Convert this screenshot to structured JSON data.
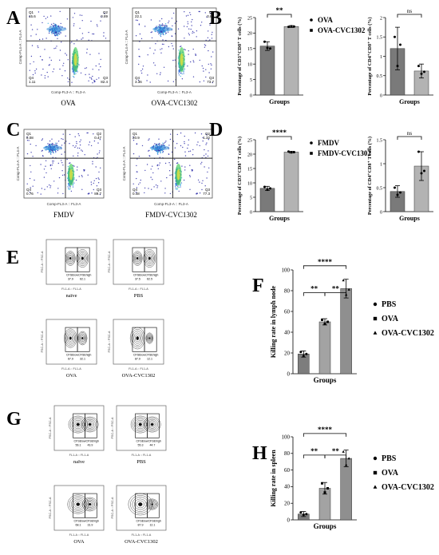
{
  "panels": {
    "A": {
      "label": "A",
      "plots": [
        {
          "caption": "OVA",
          "xaxis": "Comp-FL3-A :: FL3-A",
          "yaxis": "Comp-FL4-A :: FL4-A",
          "quadrants": {
            "q1": "Q1",
            "q1v": "15.6",
            "q2": "Q2",
            "q2v": "0.89",
            "q3": "Q3",
            "q3v": "82.4",
            "q4": "Q4",
            "q4v": "1.11"
          }
        },
        {
          "caption": "OVA-CVC1302",
          "xaxis": "Comp-FL3-A :: FL3-A",
          "yaxis": "Comp-FL4-A :: FL4-A",
          "quadrants": {
            "q1": "Q1",
            "q1v": "22.1",
            "q2": "Q2",
            "q2v": "0.81",
            "q3": "Q3",
            "q3v": "73.7",
            "q4": "Q4",
            "q4v": "3.36"
          }
        }
      ]
    },
    "C": {
      "label": "C",
      "plots": [
        {
          "caption": "FMDV",
          "xaxis": "Comp-FL3-A :: FL3-A",
          "yaxis": "Comp-FL4-A :: FL4-A",
          "quadrants": {
            "q1": "Q1",
            "q1v": "8.08",
            "q2": "Q2",
            "q2v": "0.47",
            "q3": "Q3",
            "q3v": "89.7",
            "q4": "Q4",
            "q4v": "0.76"
          }
        },
        {
          "caption": "FMDV-CVC1302",
          "xaxis": "Comp-FL3-A :: FL3-A",
          "yaxis": "Comp-FL4-A :: FL4-A",
          "quadrants": {
            "q1": "Q1",
            "q1v": "20.9",
            "q2": "Q2",
            "q2v": "1.32",
            "q3": "Q3",
            "q3v": "77.3",
            "q4": "Q4",
            "q4v": "0.48"
          }
        }
      ]
    },
    "E": {
      "label": "E",
      "plots": [
        {
          "caption": "naïve",
          "gate1": "CFSElow",
          "gate2": "CFSEhigh",
          "v1": "37.9",
          "v2": "62.1",
          "xaxis": "FL1-A :: FL1-A",
          "yaxis": "FSC-A :: FSC-A"
        },
        {
          "caption": "PBS",
          "gate1": "CFSElow",
          "gate2": "CFSEhigh",
          "v1": "37.5",
          "v2": "62.5",
          "xaxis": "FL1-A :: FL1-A",
          "yaxis": "FSC-A :: FSC-A"
        },
        {
          "caption": "OVA",
          "gate1": "CFSElow",
          "gate2": "CFSEhigh",
          "v1": "67.9",
          "v2": "32.1",
          "xaxis": "FL1-A :: FL1-A",
          "yaxis": "FSC-A :: FSC-A"
        },
        {
          "caption": "OVA-CVC1302",
          "gate1": "CFSElow",
          "gate2": "CFSEhigh",
          "v1": "87.9",
          "v2": "12.1",
          "xaxis": "FL1-A :: FL1-A",
          "yaxis": "FSC-A :: FSC-A"
        }
      ]
    },
    "G": {
      "label": "G",
      "plots": [
        {
          "caption": "naïve",
          "gate1": "CFSElow",
          "gate2": "CFSEhigh",
          "v1": "56.1",
          "v2": "43.9",
          "xaxis": "FL1-A :: FL1-A",
          "yaxis": "FSC-A :: FSC-A"
        },
        {
          "caption": "PBS",
          "gate1": "CFSElow",
          "gate2": "CFSEhigh",
          "v1": "55.3",
          "v2": "44.7",
          "xaxis": "FL1-A :: FL1-A",
          "yaxis": "FSC-A :: FSC-A"
        },
        {
          "caption": "OVA",
          "gate1": "CFSElow",
          "gate2": "CFSEhigh",
          "v1": "68.1",
          "v2": "31.9",
          "xaxis": "FL1-A :: FL1-A",
          "yaxis": "FSC-A :: FSC-A"
        },
        {
          "caption": "OVA-CVC1302",
          "gate1": "CFSElow",
          "gate2": "CFSEhigh",
          "v1": "87.9",
          "v2": "12.1",
          "xaxis": "FL1-A :: FL1-A",
          "yaxis": "FSC-A :: FSC-A"
        }
      ]
    }
  },
  "colors": {
    "dark_bar": "#7a7a7a",
    "light_bar": "#b3b3b3",
    "gate_line": "#333333"
  },
  "chart_data": [
    {
      "panel": "B",
      "label": "B",
      "type": "bar",
      "categories": [
        "OVA",
        "OVA-CVC1302"
      ],
      "values": [
        15.8,
        22.1
      ],
      "errors": [
        1.4,
        0.3
      ],
      "points": [
        [
          17.2,
          15.2,
          15.0
        ],
        [
          22.0,
          22.2,
          22.1
        ]
      ],
      "xlabel": "Groups",
      "ylabel": "Percentage of CD3⁺CD8⁺ T cells (%)",
      "ylim": [
        0,
        25
      ],
      "yticks": [
        0,
        5,
        10,
        15,
        20,
        25
      ],
      "significance": [
        {
          "from": 0,
          "to": 1,
          "text": "**"
        }
      ],
      "legend": [
        {
          "marker": "dot",
          "text": "OVA"
        },
        {
          "marker": "square",
          "text": "OVA-CVC1302"
        }
      ]
    },
    {
      "panel": "B2",
      "label": "",
      "type": "bar",
      "categories": [
        "OVA",
        "OVA-CVC1302"
      ],
      "values": [
        1.2,
        0.62
      ],
      "errors": [
        0.55,
        0.18
      ],
      "points": [
        [
          1.5,
          0.75,
          1.3
        ],
        [
          0.75,
          0.55,
          0.6
        ]
      ],
      "xlabel": "Groups",
      "ylabel": "Percentage of CD4⁺CD8⁺ T cells (%)",
      "ylim": [
        0,
        2.0
      ],
      "yticks": [
        0,
        0.5,
        1.0,
        1.5,
        2.0
      ],
      "significance": [
        {
          "from": 0,
          "to": 1,
          "text": "ns"
        }
      ],
      "legend": []
    },
    {
      "panel": "D",
      "label": "D",
      "type": "bar",
      "categories": [
        "FMDV",
        "FMDV-CVC1302"
      ],
      "values": [
        8.1,
        20.7
      ],
      "errors": [
        0.7,
        0.3
      ],
      "points": [
        [
          8.6,
          7.6,
          8.1
        ],
        [
          20.9,
          20.6,
          20.7
        ]
      ],
      "xlabel": "Groups",
      "ylabel": "Percentage of CD3⁺CD8⁺ T cells (%)",
      "ylim": [
        0,
        25
      ],
      "yticks": [
        0,
        5,
        10,
        15,
        20,
        25
      ],
      "significance": [
        {
          "from": 0,
          "to": 1,
          "text": "****"
        }
      ],
      "legend": [
        {
          "marker": "dot",
          "text": "FMDV"
        },
        {
          "marker": "square",
          "text": "FMDV-CVC1302"
        }
      ]
    },
    {
      "panel": "D2",
      "label": "",
      "type": "bar",
      "categories": [
        "FMDV",
        "FMDV-CVC1302"
      ],
      "values": [
        0.42,
        0.95
      ],
      "errors": [
        0.12,
        0.3
      ],
      "points": [
        [
          0.5,
          0.35,
          0.4
        ],
        [
          1.25,
          0.8,
          0.85
        ]
      ],
      "xlabel": "Groups",
      "ylabel": "Percentage of CD4⁺CD8⁺ T cells (%)",
      "ylim": [
        0,
        1.5
      ],
      "yticks": [
        0,
        0.5,
        1.0,
        1.5
      ],
      "significance": [
        {
          "from": 0,
          "to": 1,
          "text": "ns"
        }
      ],
      "legend": []
    },
    {
      "panel": "F",
      "label": "F",
      "type": "bar",
      "categories": [
        "PBS",
        "OVA",
        "OVA-CVC1302"
      ],
      "values": [
        19,
        50,
        82
      ],
      "errors": [
        3,
        3,
        9
      ],
      "points": [
        [
          21,
          17,
          19
        ],
        [
          52,
          48,
          50
        ],
        [
          90,
          76,
          81
        ]
      ],
      "xlabel": "Groups",
      "ylabel": "Killing rate in lymph node",
      "ylim": [
        0,
        100
      ],
      "yticks": [
        0,
        20,
        40,
        60,
        80,
        100
      ],
      "significance": [
        {
          "from": 0,
          "to": 1,
          "text": "**"
        },
        {
          "from": 1,
          "to": 2,
          "text": "**"
        },
        {
          "from": 0,
          "to": 2,
          "text": "****"
        }
      ],
      "legend": [
        {
          "marker": "dot",
          "text": "PBS"
        },
        {
          "marker": "square",
          "text": "OVA"
        },
        {
          "marker": "triangle",
          "text": "OVA-CVC1302"
        }
      ]
    },
    {
      "panel": "H",
      "label": "H",
      "type": "bar",
      "categories": [
        "PBS",
        "OVA",
        "OVA-CVC1302"
      ],
      "values": [
        7,
        38,
        74
      ],
      "errors": [
        3,
        7,
        10
      ],
      "points": [
        [
          9,
          6,
          7
        ],
        [
          44,
          33,
          38
        ],
        [
          82,
          66,
          74
        ]
      ],
      "xlabel": "Groups",
      "ylabel": "Killing rate in spleen",
      "ylim": [
        0,
        100
      ],
      "yticks": [
        0,
        20,
        40,
        60,
        80,
        100
      ],
      "significance": [
        {
          "from": 0,
          "to": 1,
          "text": "**"
        },
        {
          "from": 1,
          "to": 2,
          "text": "**"
        },
        {
          "from": 0,
          "to": 2,
          "text": "****"
        }
      ],
      "legend": [
        {
          "marker": "dot",
          "text": "PBS"
        },
        {
          "marker": "square",
          "text": "OVA"
        },
        {
          "marker": "triangle",
          "text": "OVA-CVC1302"
        }
      ]
    }
  ]
}
